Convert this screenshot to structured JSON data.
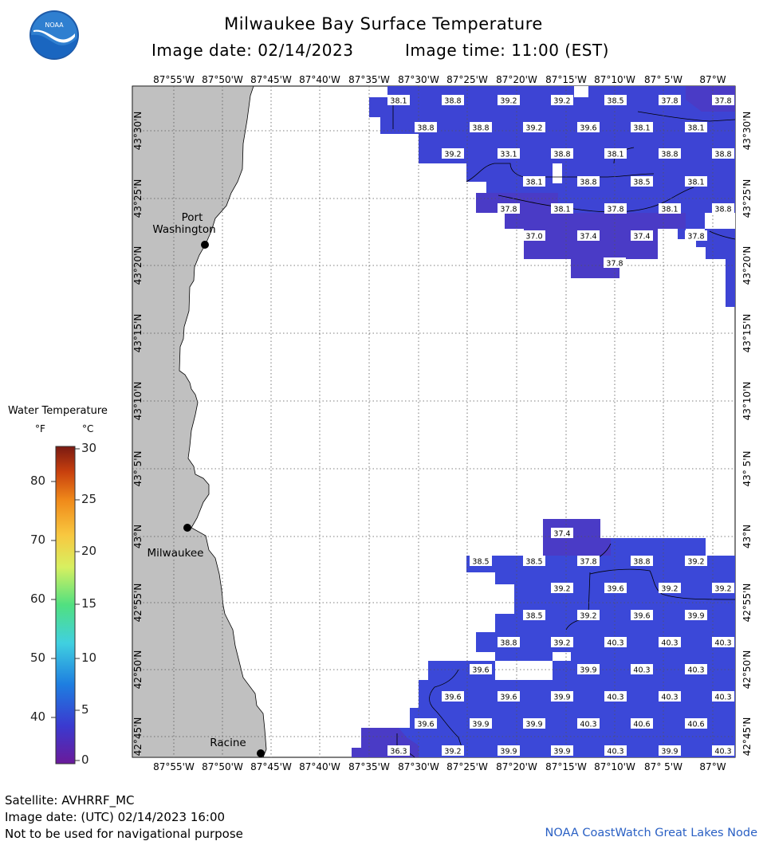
{
  "header": {
    "title": "Milwaukee Bay Surface Temperature",
    "image_date": "Image date: 02/14/2023",
    "image_time": "Image time: 11:00 (EST)",
    "logo_text": "NOAA"
  },
  "axes": {
    "longitude_labels": [
      "87°55'W",
      "87°50'W",
      "87°45'W",
      "87°40'W",
      "87°35'W",
      "87°30'W",
      "87°25'W",
      "87°20'W",
      "87°15'W",
      "87°10'W",
      "87° 5'W",
      "87°W"
    ],
    "latitude_labels": [
      "43°30'N",
      "43°25'N",
      "43°20'N",
      "43°15'N",
      "43°10'N",
      "43° 5'N",
      "43°N",
      "42°55'N",
      "42°50'N",
      "42°45'N"
    ]
  },
  "cities": [
    {
      "name_line1": "Port",
      "name_line2": "Washington"
    },
    {
      "name_line1": "Milwaukee",
      "name_line2": ""
    },
    {
      "name_line1": "Racine",
      "name_line2": ""
    }
  ],
  "temperature_readings_north": [
    [
      "38.1",
      "38.8",
      "39.2",
      "39.2",
      "38.5",
      "37.8",
      "37.8"
    ],
    [
      "38.8",
      "38.8",
      "39.2",
      "39.6",
      "38.1",
      "38.1"
    ],
    [
      "39.2",
      "33.1",
      "38.8",
      "38.1",
      "38.8",
      "38.8"
    ],
    [
      "38.1",
      "38.8",
      "38.5",
      "38.1"
    ],
    [
      "37.8",
      "38.1",
      "37.8",
      "38.1",
      "38.8"
    ],
    [
      "37.0",
      "37.4",
      "37.4",
      "37.8"
    ],
    [
      "37.8"
    ]
  ],
  "temperature_readings_south": [
    [
      "37.4"
    ],
    [
      "38.5",
      "38.5",
      "37.8",
      "38.8",
      "39.2"
    ],
    [
      "39.2",
      "39.6",
      "39.2",
      "39.2"
    ],
    [
      "38.5",
      "39.2",
      "39.6",
      "39.9"
    ],
    [
      "38.8",
      "39.2",
      "40.3",
      "40.3",
      "40.3"
    ],
    [
      "39.6",
      "39.9",
      "40.3",
      "40.3"
    ],
    [
      "39.6",
      "39.6",
      "39.9",
      "40.3",
      "40.3",
      "40.3"
    ],
    [
      "39.6",
      "39.9",
      "39.9",
      "40.3",
      "40.6",
      "40.6"
    ],
    [
      "36.3",
      "39.2",
      "39.9",
      "39.9",
      "40.3",
      "39.9",
      "40.3"
    ]
  ],
  "legend": {
    "title": "Water Temperature",
    "unit_f": "°F",
    "unit_c": "°C",
    "f_ticks": [
      "80",
      "70",
      "60",
      "50",
      "40"
    ],
    "c_ticks": [
      "30",
      "25",
      "20",
      "15",
      "10",
      "5",
      "0"
    ],
    "color_top": "#7a1a12",
    "color_bottom": "#6a1a9a"
  },
  "footer": {
    "satellite": "Satellite: AVHRRF_MC",
    "utc_date": "Image date: (UTC) 02/14/2023  16:00",
    "disclaimer": "Not to be used for navigational purpose",
    "credit": "NOAA CoastWatch Great Lakes Node"
  },
  "colors": {
    "land": "#c0c0c0",
    "water_blue": "#3b46d6",
    "water_violet": "#4b3cc4",
    "credit_text": "#2a60c4"
  }
}
